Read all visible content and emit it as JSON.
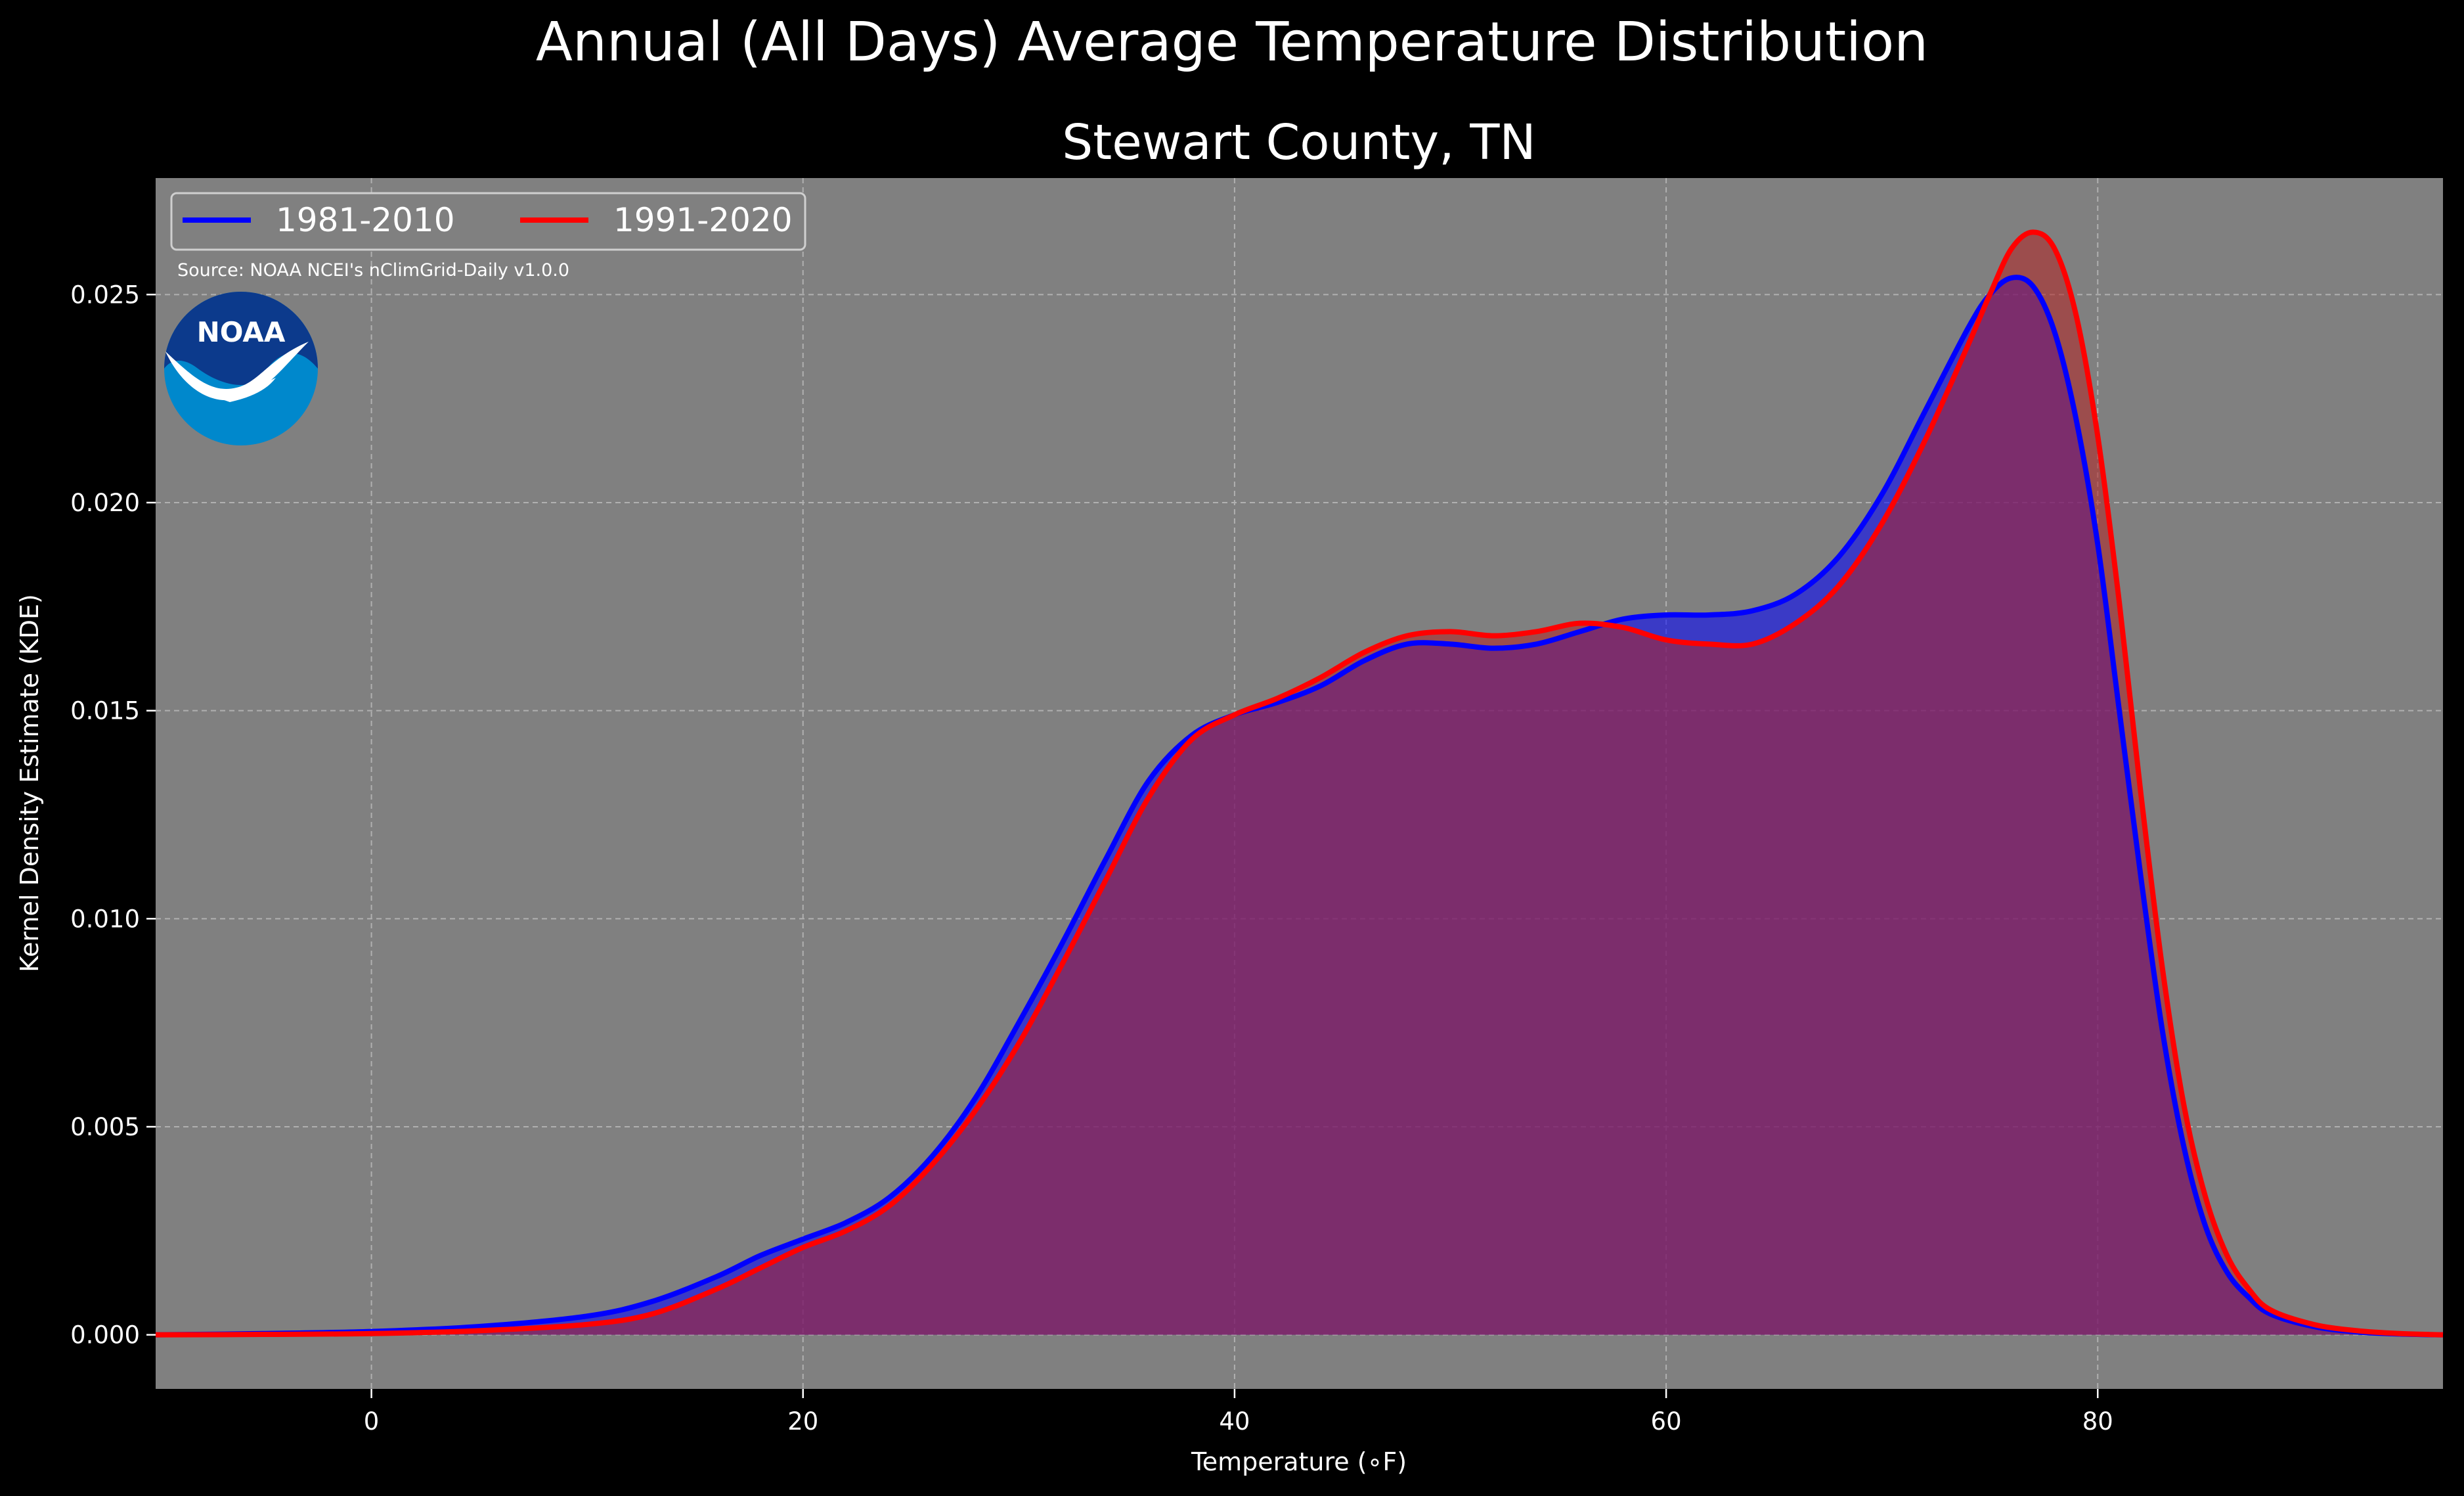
{
  "chart_data": {
    "type": "area",
    "suptitle": "Annual (All Days) Average Temperature Distribution",
    "title": "Stewart County, TN",
    "xlabel": "Temperature ($^\\circ$F)",
    "xlabel_display": "Temperature (∘F)",
    "ylabel": "Kernel Density Estimate (KDE)",
    "xlim": [
      -10,
      96
    ],
    "ylim": [
      -0.0013,
      0.0278
    ],
    "xticks": [
      0,
      20,
      40,
      60,
      80
    ],
    "xtick_labels": [
      "0",
      "20",
      "40",
      "60",
      "80"
    ],
    "yticks": [
      0.0,
      0.005,
      0.01,
      0.015,
      0.02,
      0.025
    ],
    "ytick_labels": [
      "0.000",
      "0.005",
      "0.010",
      "0.015",
      "0.020",
      "0.025"
    ],
    "grid": true,
    "legend_position": "top-left",
    "source_note": "Source: NOAA NCEI's nClimGrid-Daily v1.0.0",
    "logo_text": "NOAA",
    "background_color": "#808080",
    "figure_color": "#000000",
    "series": [
      {
        "name": "1981-2010",
        "color": "#0000ff",
        "fill": "#0000ff",
        "x": [
          -10,
          -5,
          0,
          5,
          10,
          13,
          16,
          18,
          20,
          22,
          24,
          26,
          28,
          30,
          32,
          34,
          36,
          38,
          40,
          42,
          44,
          46,
          48,
          50,
          52,
          54,
          56,
          58,
          60,
          62,
          64,
          66,
          68,
          70,
          72,
          74,
          75,
          76,
          77,
          78,
          79,
          80,
          81,
          82,
          83,
          84,
          85,
          86,
          87,
          88,
          90,
          92,
          94,
          96
        ],
        "y": [
          0.0,
          3e-05,
          8e-05,
          0.0002,
          0.00045,
          0.0008,
          0.0014,
          0.0019,
          0.0023,
          0.0027,
          0.0033,
          0.0043,
          0.0057,
          0.0075,
          0.0094,
          0.0114,
          0.0133,
          0.0144,
          0.0149,
          0.0152,
          0.0156,
          0.0162,
          0.0166,
          0.0166,
          0.0165,
          0.0166,
          0.0169,
          0.0172,
          0.0173,
          0.0173,
          0.0174,
          0.0178,
          0.0187,
          0.0202,
          0.0222,
          0.0242,
          0.025,
          0.0254,
          0.0252,
          0.0241,
          0.022,
          0.019,
          0.015,
          0.011,
          0.0073,
          0.0045,
          0.0026,
          0.0015,
          0.0009,
          0.0005,
          0.0002,
          7e-05,
          2e-05,
          0.0
        ]
      },
      {
        "name": "1991-2020",
        "color": "#ff0000",
        "fill": "#b22222",
        "x": [
          -10,
          -5,
          0,
          5,
          10,
          13,
          16,
          18,
          20,
          22,
          24,
          26,
          28,
          30,
          32,
          34,
          36,
          38,
          40,
          42,
          44,
          46,
          48,
          50,
          52,
          54,
          56,
          58,
          60,
          62,
          64,
          66,
          68,
          70,
          72,
          74,
          75,
          76,
          77,
          78,
          79,
          80,
          81,
          82,
          83,
          84,
          85,
          86,
          87,
          88,
          90,
          92,
          94,
          96
        ],
        "y": [
          0.0,
          1e-05,
          3e-05,
          0.0001,
          0.00025,
          0.0005,
          0.0011,
          0.0016,
          0.0021,
          0.0025,
          0.0031,
          0.0041,
          0.0054,
          0.007,
          0.0089,
          0.0109,
          0.0129,
          0.0143,
          0.0149,
          0.0153,
          0.0158,
          0.0164,
          0.0168,
          0.0169,
          0.0168,
          0.0169,
          0.0171,
          0.017,
          0.0167,
          0.0166,
          0.0166,
          0.0171,
          0.018,
          0.0195,
          0.0215,
          0.0238,
          0.025,
          0.0261,
          0.0265,
          0.0261,
          0.0245,
          0.0216,
          0.0176,
          0.013,
          0.0088,
          0.0055,
          0.0033,
          0.0019,
          0.0011,
          0.0006,
          0.00025,
          0.0001,
          3e-05,
          0.0
        ]
      }
    ]
  }
}
